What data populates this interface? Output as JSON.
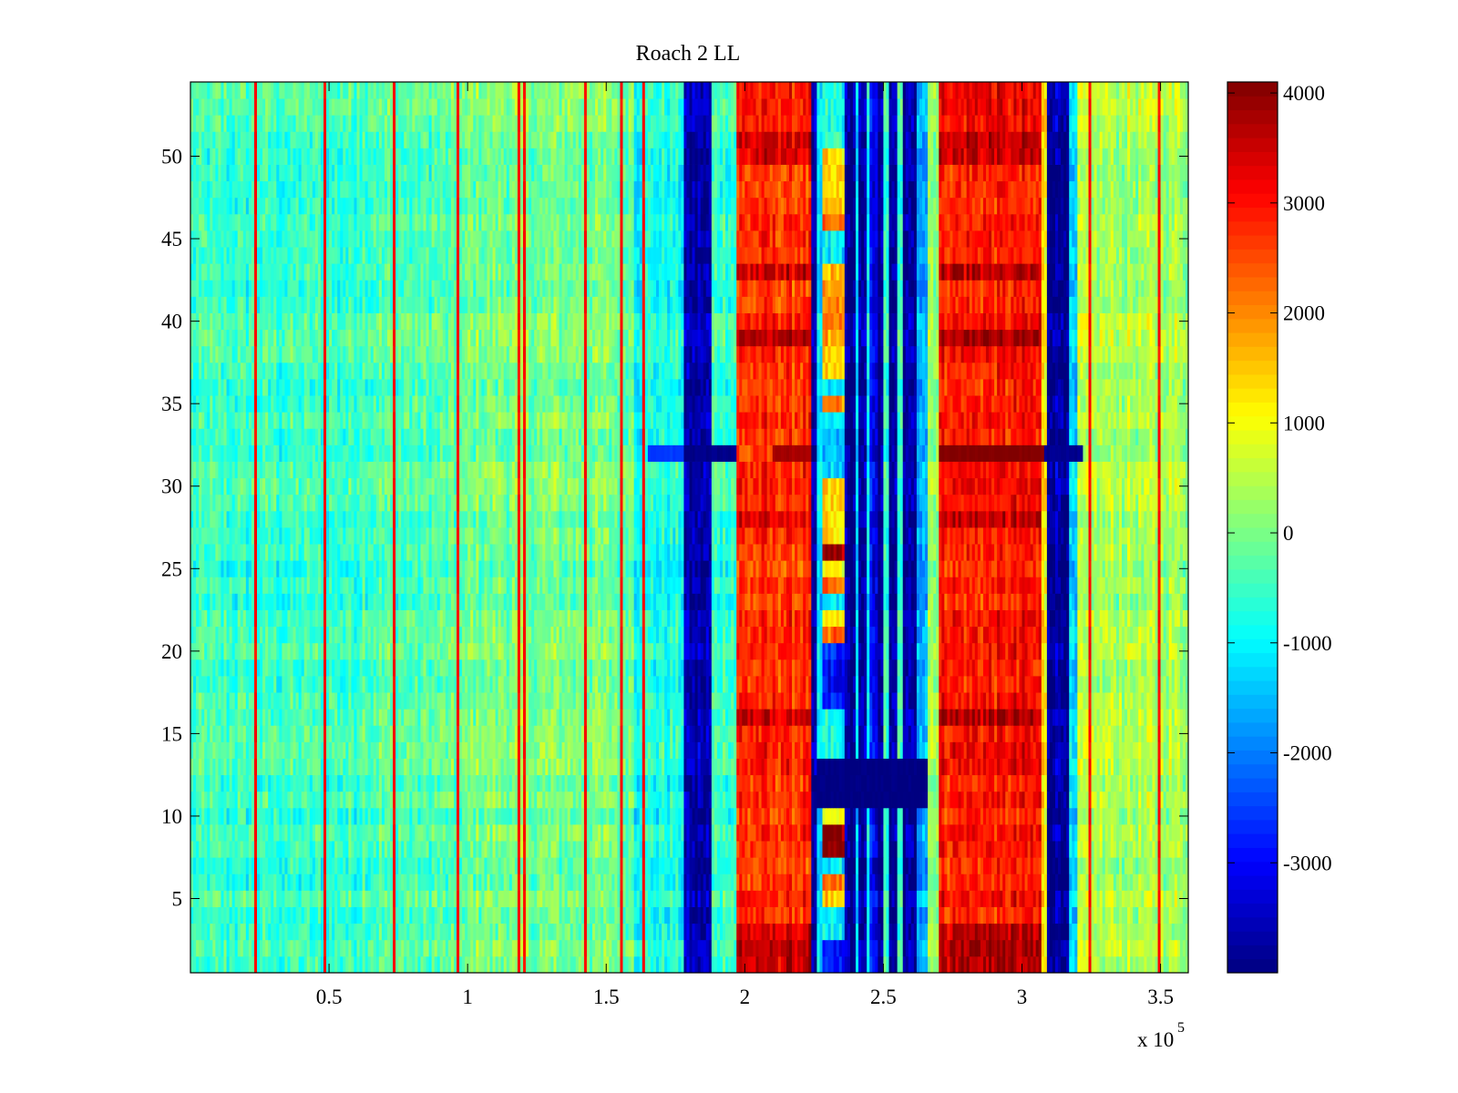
{
  "chart_data": {
    "type": "heatmap",
    "title": "Roach 2 LL",
    "xlabel": "",
    "ylabel": "",
    "x_exponent_label": "x 10",
    "x_exponent": "5",
    "xlim": [
      0,
      3.6
    ],
    "ylim": [
      0.5,
      54.5
    ],
    "x_ticks": [
      0.5,
      1,
      1.5,
      2,
      2.5,
      3,
      3.5
    ],
    "x_tick_labels": [
      "0.5",
      "1",
      "1.5",
      "2",
      "2.5",
      "3",
      "3.5"
    ],
    "y_ticks": [
      5,
      10,
      15,
      20,
      25,
      30,
      35,
      40,
      45,
      50
    ],
    "y_tick_labels": [
      "5",
      "10",
      "15",
      "20",
      "25",
      "30",
      "35",
      "40",
      "45",
      "50"
    ],
    "rows": 54,
    "x_step": 0.01,
    "colormap": "jet",
    "clim": [
      -4000,
      4100
    ],
    "colorbar_ticks": [
      -3000,
      -2000,
      -1000,
      0,
      1000,
      2000,
      3000,
      4000
    ],
    "colorbar_tick_labels": [
      "-3000",
      "-2000",
      "-1000",
      "0",
      "1000",
      "2000",
      "3000",
      "4000"
    ],
    "column_profile": [
      [
        0.0,
        0.6,
        -550
      ],
      [
        0.6,
        1.0,
        -350
      ],
      [
        1.0,
        1.6,
        -50
      ],
      [
        1.6,
        1.78,
        -800
      ],
      [
        1.78,
        1.88,
        -3700
      ],
      [
        1.88,
        1.97,
        -500
      ],
      [
        1.97,
        2.24,
        2700
      ],
      [
        2.24,
        2.26,
        -3900
      ],
      [
        2.26,
        2.28,
        -1300
      ],
      [
        2.36,
        2.4,
        -3900
      ],
      [
        2.4,
        2.41,
        -1200
      ],
      [
        2.41,
        2.44,
        -3900
      ],
      [
        2.44,
        2.45,
        -1000
      ],
      [
        2.45,
        2.48,
        -3000
      ],
      [
        2.48,
        2.5,
        -3900
      ],
      [
        2.5,
        2.52,
        -600
      ],
      [
        2.52,
        2.55,
        -3900
      ],
      [
        2.55,
        2.57,
        -700
      ],
      [
        2.57,
        2.62,
        -3800
      ],
      [
        2.62,
        2.66,
        -1500
      ],
      [
        2.66,
        2.7,
        300
      ],
      [
        2.7,
        3.07,
        2900
      ],
      [
        3.07,
        3.09,
        1200
      ],
      [
        3.09,
        3.17,
        -3700
      ],
      [
        3.17,
        3.2,
        -1500
      ],
      [
        3.2,
        3.6,
        350
      ]
    ],
    "variable_band": {
      "x_range": [
        2.28,
        2.36
      ],
      "values_by_row": [
        -3000,
        -3000,
        -1000,
        -1000,
        1200,
        2200,
        -800,
        4000,
        4000,
        1200,
        -3900,
        -3900,
        -3900,
        -1000,
        -1000,
        -1000,
        -3000,
        -3000,
        -3000,
        -3000,
        2200,
        1200,
        -1000,
        2200,
        1200,
        4000,
        1200,
        1200,
        1200,
        1200,
        -1500,
        -1500,
        -1500,
        -1500,
        2200,
        -1000,
        1200,
        1200,
        1500,
        2000,
        2000,
        2000,
        1500,
        -1000,
        -1000,
        2200,
        1500,
        1500,
        1500,
        1500,
        -500,
        -1000,
        -1000,
        -1000
      ]
    },
    "thin_lines": [
      0.23,
      0.48,
      0.73,
      0.96,
      1.18,
      1.2,
      1.42,
      1.55,
      1.63,
      3.24,
      3.49
    ],
    "thin_line_value": 3000,
    "row_anomalies": [
      {
        "row": 32,
        "x_range": [
          1.65,
          1.78
        ],
        "value": -2500
      },
      {
        "row": 32,
        "x_range": [
          1.78,
          1.97
        ],
        "value": -3950
      },
      {
        "row": 32,
        "x_range": [
          2.1,
          2.24
        ],
        "value": 3800
      },
      {
        "row": 32,
        "x_range": [
          2.7,
          3.08
        ],
        "value": 4100
      },
      {
        "row": 32,
        "x_range": [
          3.08,
          3.22
        ],
        "value": -3900
      },
      {
        "row": 11,
        "x_range": [
          2.26,
          2.66
        ],
        "value": -4000
      },
      {
        "row": 12,
        "x_range": [
          2.26,
          2.66
        ],
        "value": -4000
      },
      {
        "row": 13,
        "x_range": [
          2.26,
          2.66
        ],
        "value": -4000
      }
    ],
    "strong_red_rows": [
      1,
      2,
      3,
      16,
      28,
      39,
      43,
      50,
      51
    ],
    "noise_amplitude": 650
  }
}
